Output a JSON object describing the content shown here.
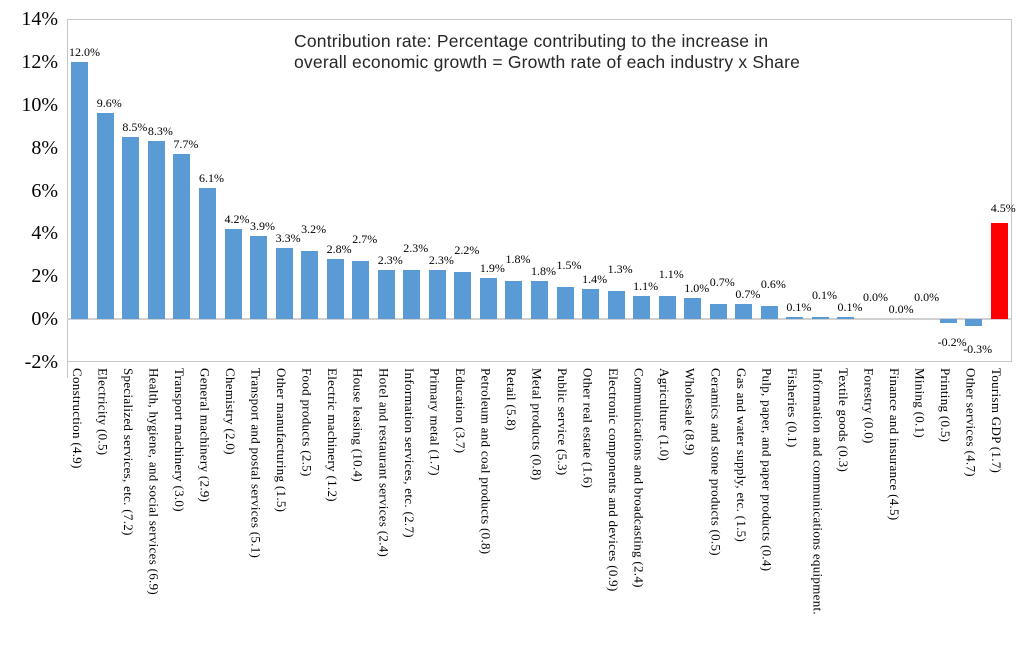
{
  "chart_data": {
    "type": "bar",
    "title_lines": [
      "Contribution rate: Percentage contributing to the increase in",
      "overall economic growth = Growth rate of each industry x Share"
    ],
    "categories": [
      "Construction (4.9)",
      "Electricity (0.5)",
      "Specialized services, etc. (7.2)",
      "Health, hygiene, and social services (6.9)",
      "Transport machinery (3.0)",
      "General machinery (2.9)",
      "Chemistry (2.0)",
      "Transport and postal services (5.1)",
      "Other manufacturing (1.5)",
      "Food products (2.5)",
      "Electric machinery (1.2)",
      "House leasing (10.4)",
      "Hotel and restaurant services (2.4)",
      "Information services, etc. (2.7)",
      "Primary metal (1.7)",
      "Education (3.7)",
      "Petroleum and coal products (0.8)",
      "Retail (5.8)",
      "Metal products (0.8)",
      "Public service (5.3)",
      "Other real estate (1.6)",
      "Electronic components and devices (0.9)",
      "Communications and broadcasting (2.4)",
      "Agriculture (1.0)",
      "Wholesale (8.9)",
      "Ceramics and stone products (0.5)",
      "Gas and water supply, etc. (1.5)",
      "Pulp, paper, and paper products (0.4)",
      "Fisheries (0.1)",
      "Information and communications equipment.",
      "Textile goods (0.3)",
      "Forestry (0.0)",
      "Finance and insurance (4.5)",
      "Mining (0.1)",
      "Printing (0.5)",
      "Other services (4.7)",
      "Tourism GDP (1.7)"
    ],
    "values": [
      12.0,
      9.6,
      8.5,
      8.3,
      7.7,
      6.1,
      4.2,
      3.9,
      3.3,
      3.2,
      2.8,
      2.7,
      2.3,
      2.3,
      2.3,
      2.2,
      1.9,
      1.8,
      1.8,
      1.5,
      1.4,
      1.3,
      1.1,
      1.1,
      1.0,
      0.7,
      0.7,
      0.6,
      0.1,
      0.1,
      0.1,
      0.0,
      0.0,
      0.0,
      -0.2,
      -0.3,
      4.5
    ],
    "data_label_suffix": "%",
    "yticks": [
      "14%",
      "12%",
      "10%",
      "8%",
      "6%",
      "4%",
      "2%",
      "0%",
      "-2%"
    ],
    "ylim": [
      -2,
      14
    ],
    "ytick_step": 2,
    "xlabel": "",
    "ylabel": "",
    "legend": "none",
    "grid": "off",
    "highlight_index": 36,
    "colors": {
      "bar": "#5B9BD5",
      "highlight": "#FF0000",
      "axis": "#C6C6C6",
      "baseline": "#D0D0D0",
      "text": "#000000",
      "title_text": "#262626"
    }
  }
}
